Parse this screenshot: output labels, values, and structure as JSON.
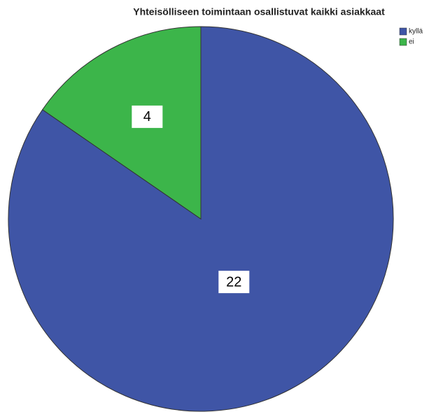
{
  "chart_data": {
    "type": "pie",
    "title": "Yhteisölliseen toimintaan osallistuvat kaikki asiakkaat",
    "categories": [
      "kyllä",
      "ei"
    ],
    "values": [
      22,
      4
    ],
    "colors": [
      "#3f55a6",
      "#3cb54a"
    ]
  }
}
